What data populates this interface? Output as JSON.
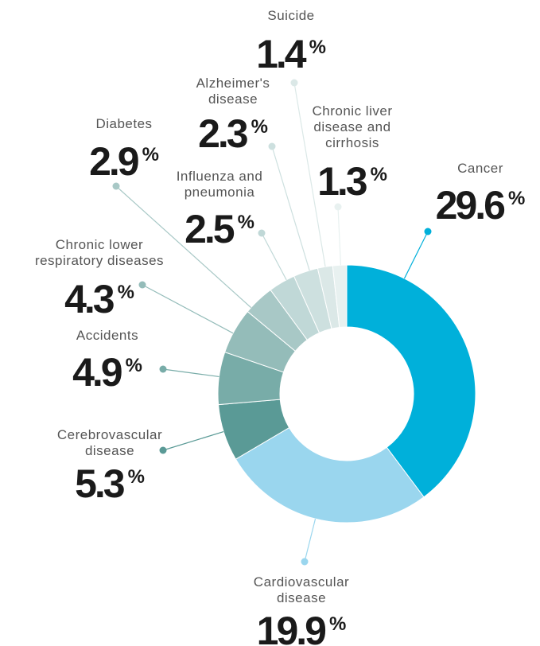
{
  "chart_data": {
    "type": "donut",
    "categories": [
      "Cancer",
      "Cardiovascular\ndisease",
      "Cerebrovascular\ndisease",
      "Accidents",
      "Chronic lower\nrespiratory diseases",
      "Diabetes",
      "Influenza and\npneumonia",
      "Alzheimer's\ndisease",
      "Suicide",
      "Chronic liver\ndisease and\ncirrhosis"
    ],
    "values": [
      29.6,
      19.9,
      5.3,
      4.9,
      4.3,
      2.9,
      2.5,
      2.3,
      1.4,
      1.3
    ],
    "unit_label": "%",
    "colors": [
      "#00b0da",
      "#9ad6ee",
      "#5a9a96",
      "#78aca8",
      "#94bcb9",
      "#a8c8c6",
      "#c0d8d7",
      "#cde0df",
      "#dbe8e7",
      "#e8f1f0"
    ]
  }
}
